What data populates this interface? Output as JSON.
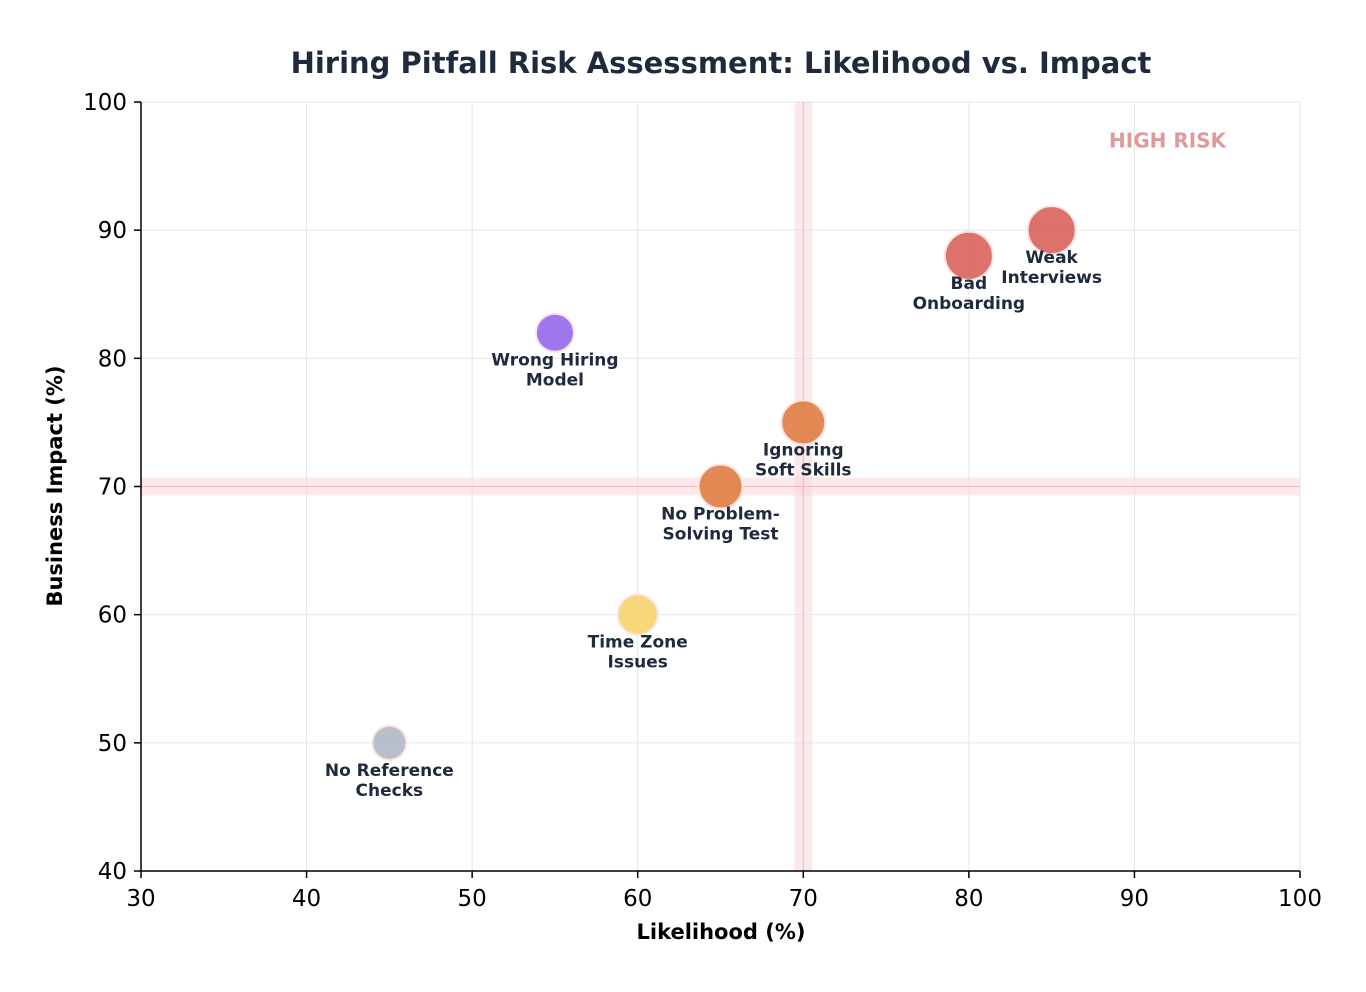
{
  "chart_data": {
    "type": "scatter",
    "title": "Hiring Pitfall Risk Assessment: Likelihood vs. Impact",
    "xlabel": "Likelihood (%)",
    "ylabel": "Business Impact (%)",
    "xlim": [
      30,
      100
    ],
    "ylim": [
      40,
      100
    ],
    "xticks": [
      30,
      40,
      50,
      60,
      70,
      80,
      90,
      100
    ],
    "yticks": [
      40,
      50,
      60,
      70,
      80,
      90,
      100
    ],
    "grid": true,
    "reference_lines": {
      "x": 70,
      "y": 70,
      "color": "#f8d7da"
    },
    "annotation": {
      "text": "HIGH RISK",
      "x": 92,
      "y": 97,
      "color": "#e09a9a"
    },
    "points": [
      {
        "label": [
          "Weak",
          "Interviews"
        ],
        "x": 85,
        "y": 90,
        "color": "#d9625b"
      },
      {
        "label": [
          "Bad",
          "Onboarding"
        ],
        "x": 80,
        "y": 88,
        "color": "#d9625b"
      },
      {
        "label": [
          "Wrong Hiring",
          "Model"
        ],
        "x": 55,
        "y": 82,
        "color": "#9468ec"
      },
      {
        "label": [
          "Ignoring",
          "Soft Skills"
        ],
        "x": 70,
        "y": 75,
        "color": "#e07c42"
      },
      {
        "label": [
          "No Problem-",
          "Solving Test"
        ],
        "x": 65,
        "y": 70,
        "color": "#e07c42"
      },
      {
        "label": [
          "Time Zone",
          "Issues"
        ],
        "x": 60,
        "y": 60,
        "color": "#f5d36a"
      },
      {
        "label": [
          "No Reference",
          "Checks"
        ],
        "x": 45,
        "y": 50,
        "color": "#b0b8c6"
      }
    ]
  }
}
